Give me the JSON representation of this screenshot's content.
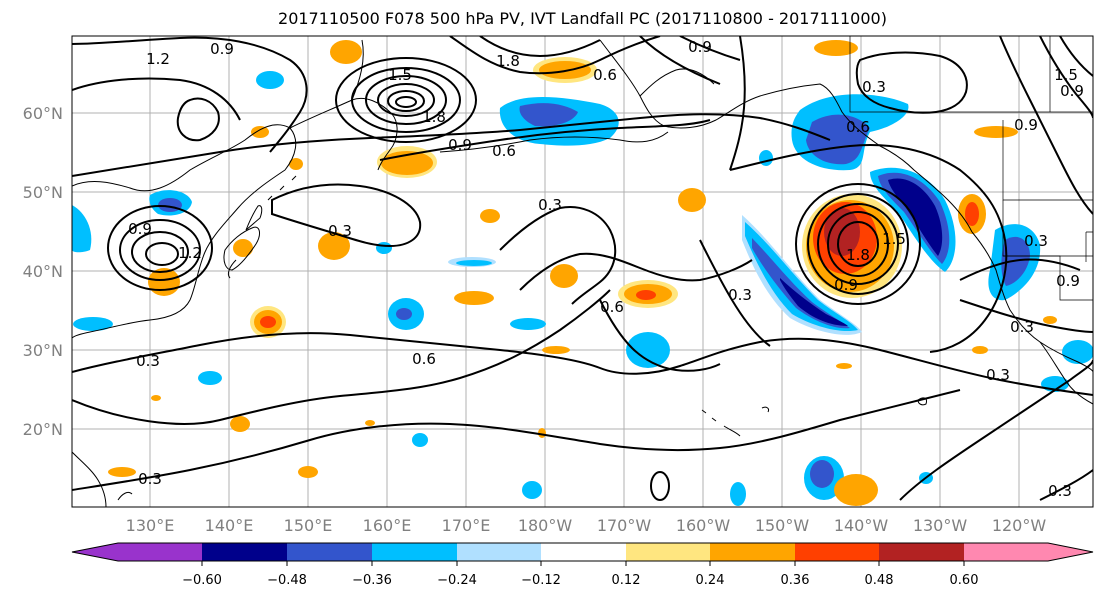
{
  "title": "2017110500 F078 500 hPa PV, IVT Landfall PC (2017110800 - 2017111000)",
  "map": {
    "lat_labels": [
      "20°N",
      "30°N",
      "40°N",
      "50°N",
      "60°N"
    ],
    "lon_labels": [
      "130°E",
      "140°E",
      "150°E",
      "160°E",
      "170°E",
      "180°W",
      "170°W",
      "160°W",
      "150°W",
      "140°W",
      "130°W",
      "120°W"
    ],
    "contour_labels": [
      "1.2",
      "0.9",
      "1.5",
      "1.8",
      "1.8",
      "0.9",
      "0.6",
      "0.9",
      "0.3",
      "0.6",
      "1.5",
      "0.9",
      "0.3",
      "0.9",
      "1.2",
      "0.3",
      "0.3",
      "0.6",
      "0.3",
      "1.8",
      "1.5",
      "0.9",
      "0.3",
      "0.3",
      "0.6",
      "0.3",
      "0.3",
      "0.3",
      "0.9",
      "0.6",
      "0.9"
    ]
  },
  "colorbar": {
    "tick_labels": [
      "−0.60",
      "−0.48",
      "−0.36",
      "−0.24",
      "−0.12",
      "0.12",
      "0.24",
      "0.36",
      "0.48",
      "0.60"
    ],
    "colors": [
      "#9933cc",
      "#00008b",
      "#3355cc",
      "#00bfff",
      "#b0e0ff",
      "#ffffff",
      "#ffe680",
      "#ffa500",
      "#ff4000",
      "#b22222",
      "#ff88b0"
    ]
  }
}
